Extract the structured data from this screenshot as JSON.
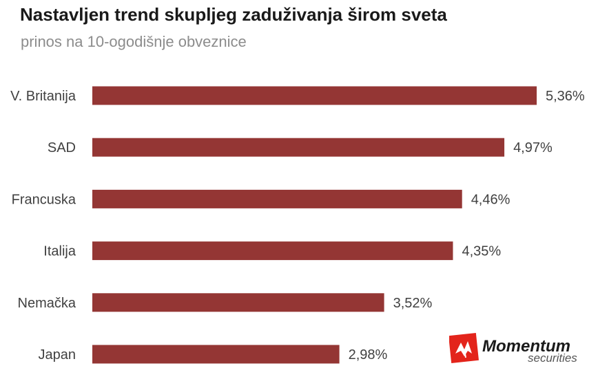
{
  "header": {
    "title": "Nastavljen trend skupljeg zaduživanja širom sveta",
    "subtitle": "prinos na 10-ogodišnje obveznice"
  },
  "chart_data": {
    "type": "bar",
    "orientation": "horizontal",
    "title": "Nastavljen trend skupljeg zaduživanja širom sveta",
    "subtitle": "prinos na 10-ogodišnje obveznice",
    "categories": [
      "V. Britanija",
      "SAD",
      "Francuska",
      "Italija",
      "Nemačka",
      "Japan"
    ],
    "values": [
      5.36,
      4.97,
      4.46,
      4.35,
      3.52,
      2.98
    ],
    "value_labels": [
      "5,36%",
      "4,97%",
      "4,46%",
      "4,35%",
      "3,52%",
      "2,98%"
    ],
    "unit": "%",
    "xlim": [
      0,
      5.36
    ],
    "grid": false,
    "legend": "none",
    "bar_color": "#943634"
  },
  "logo": {
    "brand": "Momentum",
    "sub": "securities",
    "accent_color": "#e3241b"
  }
}
